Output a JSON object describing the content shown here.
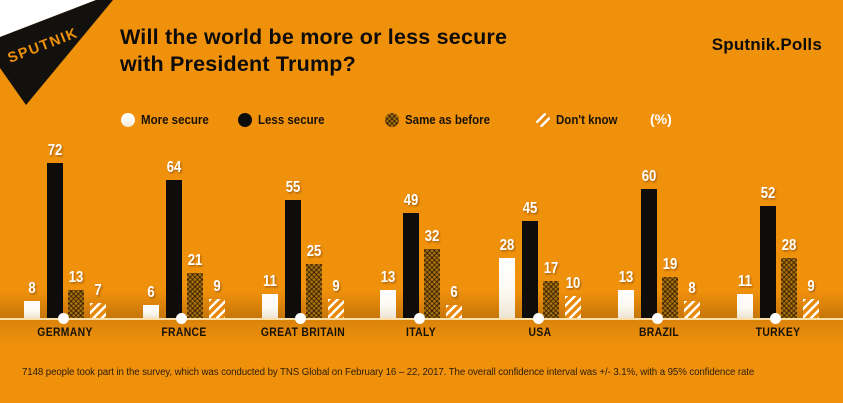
{
  "header": {
    "logo_text": "SPUTNIK",
    "title_line1": "Will the world be more or less secure",
    "title_line2": "with President Trump?",
    "brand": "Sputnik.Polls"
  },
  "legend": {
    "items": [
      {
        "label": "More secure",
        "swatch": "more"
      },
      {
        "label": "Less secure",
        "swatch": "less"
      },
      {
        "label": "Same as before",
        "swatch": "same"
      },
      {
        "label": "Don't know",
        "swatch": "dk"
      }
    ],
    "unit_label": "(%)"
  },
  "chart_data": {
    "type": "bar",
    "title": "Will the world be more or less secure with President Trump?",
    "unit": "%",
    "categories": [
      "GERMANY",
      "FRANCE",
      "GREAT BRITAIN",
      "ITALY",
      "USA",
      "BRAZIL",
      "TURKEY"
    ],
    "series": [
      {
        "name": "More secure",
        "key": "more",
        "values": [
          8,
          6,
          11,
          13,
          28,
          13,
          11
        ]
      },
      {
        "name": "Less secure",
        "key": "less",
        "values": [
          72,
          64,
          55,
          49,
          45,
          60,
          52
        ]
      },
      {
        "name": "Same as before",
        "key": "same",
        "values": [
          13,
          21,
          25,
          32,
          17,
          19,
          28
        ]
      },
      {
        "name": "Don't know",
        "key": "dk",
        "values": [
          7,
          9,
          9,
          6,
          10,
          8,
          9
        ]
      }
    ],
    "ylim": [
      0,
      80
    ],
    "legend_position": "top",
    "grid": false,
    "colors": {
      "background": "#F0910C",
      "more_secure": "#FFFFFF",
      "less_secure": "#0E0D0B",
      "same_as_before": "#AC720D",
      "dont_know_stripes": "#FFFFFF",
      "baseline": "#FFDFA6",
      "text_dark": "#0D0C0A",
      "value_labels": "#FFFFFF"
    }
  },
  "footer": {
    "note": "7148 people took part in the survey, which was conducted by TNS Global on February 16 – 22, 2017. The overall confidence interval was +/- 3.1%, with a 95% confidence rate"
  }
}
